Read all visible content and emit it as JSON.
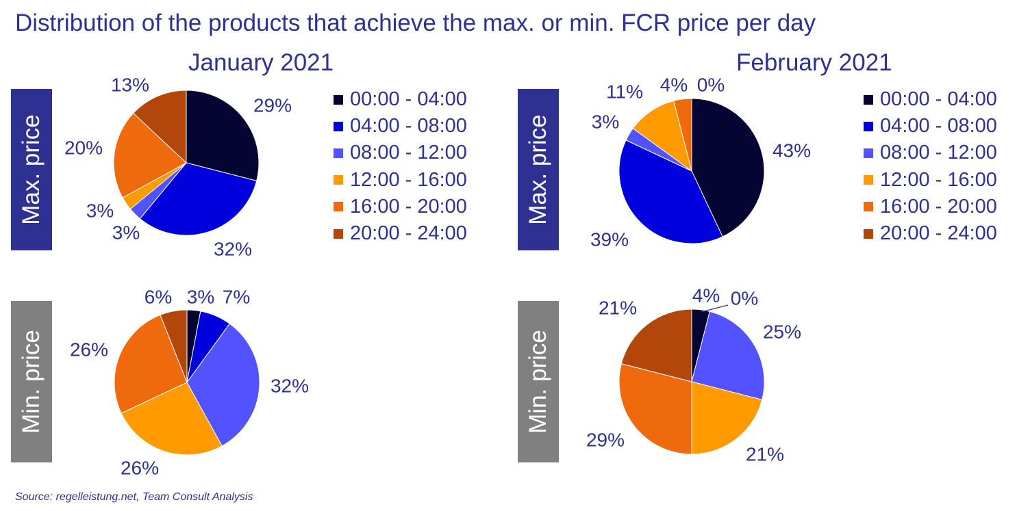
{
  "title": "Distribution of the products that achieve the max. or min. FCR price per day",
  "months": {
    "jan": "January 2021",
    "feb": "February 2021"
  },
  "row_labels": {
    "max": "Max. price",
    "min": "Min. price"
  },
  "legend": [
    {
      "label": "00:00 - 04:00",
      "color": "#050533"
    },
    {
      "label": "04:00 - 08:00",
      "color": "#0000dd"
    },
    {
      "label": "08:00 - 12:00",
      "color": "#5252ff"
    },
    {
      "label": "12:00 - 16:00",
      "color": "#ff9a00"
    },
    {
      "label": "16:00 - 20:00",
      "color": "#ee6a0c"
    },
    {
      "label": "20:00 - 24:00",
      "color": "#b3470b"
    }
  ],
  "source": "Source: regelleistung.net,  Team Consult Analysis",
  "chart_data": [
    {
      "type": "pie",
      "period": "January 2021",
      "measure": "Max. price",
      "categories": [
        "00:00 - 04:00",
        "04:00 - 08:00",
        "08:00 - 12:00",
        "12:00 - 16:00",
        "16:00 - 20:00",
        "20:00 - 24:00"
      ],
      "values": [
        29,
        32,
        3,
        3,
        20,
        13
      ],
      "labels": [
        "29%",
        "32%",
        "3%",
        "3%",
        "20%",
        "13%"
      ]
    },
    {
      "type": "pie",
      "period": "February 2021",
      "measure": "Max. price",
      "categories": [
        "00:00 - 04:00",
        "04:00 - 08:00",
        "08:00 - 12:00",
        "12:00 - 16:00",
        "16:00 - 20:00",
        "20:00 - 24:00"
      ],
      "values": [
        43,
        39,
        3,
        11,
        4,
        0
      ],
      "labels": [
        "43%",
        "39%",
        "3%",
        "11%",
        "4%",
        "0%"
      ]
    },
    {
      "type": "pie",
      "period": "January 2021",
      "measure": "Min. price",
      "categories": [
        "00:00 - 04:00",
        "04:00 - 08:00",
        "08:00 - 12:00",
        "12:00 - 16:00",
        "16:00 - 20:00",
        "20:00 - 24:00"
      ],
      "values": [
        3,
        7,
        32,
        26,
        26,
        6
      ],
      "labels": [
        "3%",
        "7%",
        "32%",
        "26%",
        "26%",
        "6%"
      ]
    },
    {
      "type": "pie",
      "period": "February 2021",
      "measure": "Min. price",
      "categories": [
        "00:00 - 04:00",
        "04:00 - 08:00",
        "08:00 - 12:00",
        "12:00 - 16:00",
        "16:00 - 20:00",
        "20:00 - 24:00"
      ],
      "values": [
        4,
        0,
        25,
        21,
        29,
        21
      ],
      "labels": [
        "4%",
        "0%",
        "25%",
        "21%",
        "29%",
        "21%"
      ]
    }
  ]
}
